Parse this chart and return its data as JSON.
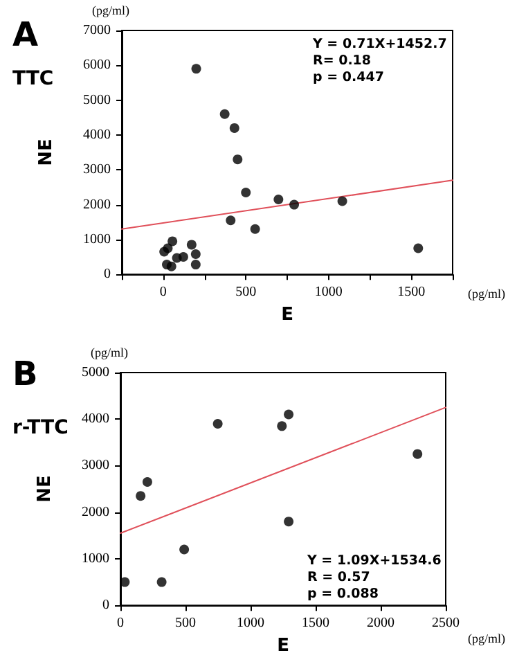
{
  "chart_data": [
    {
      "type": "scatter",
      "title": "A",
      "subtitle": "TTC",
      "xlabel": "E",
      "ylabel": "NE",
      "annotations": [
        "(pg/ml)",
        "(pg/ml)",
        "Y = 0.71X+1452.7",
        "R= 0.18",
        "p = 0.447"
      ],
      "xlim": [
        -250,
        1750
      ],
      "xticks": [
        {
          "value": -250,
          "label": null
        },
        0,
        {
          "value": 250,
          "label": null
        },
        500,
        {
          "value": 750,
          "label": null
        },
        1000,
        {
          "value": 1250,
          "label": null
        },
        1500,
        {
          "value": 1750,
          "label": null
        }
      ],
      "ylim": [
        0,
        7000
      ],
      "yticks": [
        0,
        1000,
        2000,
        3000,
        4000,
        5000,
        6000,
        7000
      ],
      "grid": false,
      "marker": "circle",
      "series": [
        {
          "type": "scatter",
          "color": "#000000",
          "x": [
            200,
            372,
            431,
            450,
            500,
            697,
            792,
            1083,
            408,
            556,
            1542,
            6,
            28,
            56,
            22,
            50,
            83,
            122,
            172,
            197,
            197
          ],
          "values": [
            5900,
            4600,
            4200,
            3300,
            2350,
            2150,
            2000,
            2100,
            1550,
            1300,
            750,
            650,
            750,
            950,
            280,
            230,
            470,
            500,
            850,
            580,
            280
          ]
        },
        {
          "type": "line",
          "color": "#e0505a",
          "marker": "none",
          "x": [
            -250,
            1750
          ],
          "values": [
            1300,
            2700
          ]
        }
      ]
    },
    {
      "type": "scatter",
      "title": "B",
      "subtitle": "r-TTC",
      "xlabel": "E",
      "ylabel": "NE",
      "annotations": [
        "(pg/ml)",
        "(pg/ml)",
        "Y = 1.09X+1534.6",
        "R = 0.57",
        "p = 0.088"
      ],
      "xlim": [
        0,
        2500
      ],
      "xticks": [
        0,
        500,
        1000,
        1500,
        2000,
        2500
      ],
      "ylim": [
        0,
        5000
      ],
      "yticks": [
        0,
        1000,
        2000,
        3000,
        4000,
        5000
      ],
      "grid": false,
      "marker": "circle",
      "series": [
        {
          "type": "scatter",
          "color": "#000000",
          "x": [
            34,
            155,
            207,
            317,
            490,
            748,
            1241,
            1293,
            1293,
            2283
          ],
          "values": [
            500,
            2350,
            2650,
            500,
            1200,
            3900,
            3850,
            4100,
            1800,
            3250
          ]
        },
        {
          "type": "line",
          "color": "#e0505a",
          "marker": "none",
          "x": [
            0,
            2500
          ],
          "values": [
            1550,
            4250
          ]
        }
      ]
    }
  ]
}
